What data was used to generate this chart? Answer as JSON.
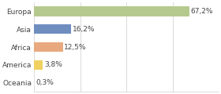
{
  "categories": [
    "Europa",
    "Asia",
    "Africa",
    "America",
    "Oceania"
  ],
  "values": [
    67.2,
    16.2,
    12.5,
    3.8,
    0.3
  ],
  "labels": [
    "67,2%",
    "16,2%",
    "12,5%",
    "3,8%",
    "0,3%"
  ],
  "bar_colors": [
    "#b5c98e",
    "#6f8ebf",
    "#e8a97e",
    "#f0d060",
    "#e0e0e0"
  ],
  "background_color": "#ffffff",
  "xlim": [
    0,
    80
  ],
  "label_fontsize": 6.5,
  "tick_fontsize": 6.5,
  "bar_height": 0.55,
  "grid_ticks": [
    0,
    20,
    40,
    60,
    80
  ],
  "grid_color": "#cccccc"
}
